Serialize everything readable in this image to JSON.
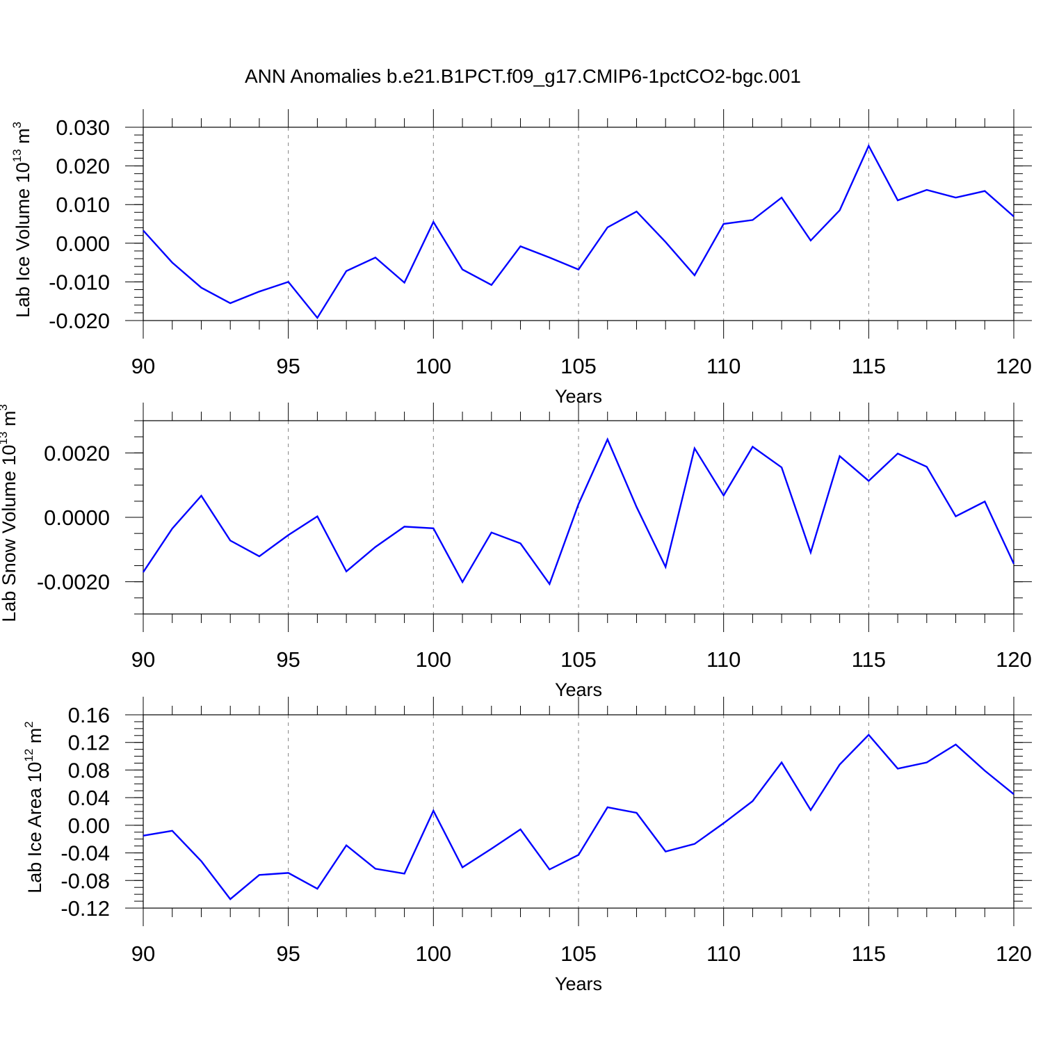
{
  "title": "ANN Anomalies b.e21.B1PCT.f09_g17.CMIP6-1pctCO2-bgc.001",
  "line_color": "#0000ff",
  "chart_data": [
    {
      "type": "line",
      "xlabel": "Years",
      "ylabel": {
        "text": "Lab Ice Volume 10",
        "exp": "13",
        "unit": " m",
        "unit_exp": "3"
      },
      "xlim": [
        90,
        120
      ],
      "ylim": [
        -0.02,
        0.03
      ],
      "x_ticks": [
        90,
        95,
        100,
        105,
        110,
        115,
        120
      ],
      "y_ticks": [
        -0.02,
        -0.01,
        0.0,
        0.01,
        0.02,
        0.03
      ],
      "y_tick_labels": [
        "-0.020",
        "-0.010",
        "0.000",
        "0.010",
        "0.020",
        "0.030"
      ],
      "y_minor_step": 0.002,
      "grid": "vertical dashed at major x ticks",
      "x": [
        90,
        91,
        92,
        93,
        94,
        95,
        96,
        97,
        98,
        99,
        100,
        101,
        102,
        103,
        104,
        105,
        106,
        107,
        108,
        109,
        110,
        111,
        112,
        113,
        114,
        115,
        116,
        117,
        118,
        119,
        120
      ],
      "y": [
        0.0033,
        -0.005,
        -0.0115,
        -0.0155,
        -0.0125,
        -0.01,
        -0.0193,
        -0.0072,
        -0.0037,
        -0.0102,
        0.0055,
        -0.0068,
        -0.0108,
        -0.0008,
        -0.0037,
        -0.0068,
        0.0041,
        0.0082,
        0.0003,
        -0.0083,
        0.005,
        0.006,
        0.0118,
        0.0007,
        0.0085,
        0.0252,
        0.0111,
        0.0138,
        0.0118,
        0.0135,
        0.0069
      ]
    },
    {
      "type": "line",
      "xlabel": "Years",
      "ylabel": {
        "text": "Lab Snow Volume 10",
        "exp": "13",
        "unit": " m",
        "unit_exp": "3"
      },
      "xlim": [
        90,
        120
      ],
      "ylim": [
        -0.003,
        0.003
      ],
      "x_ticks": [
        90,
        95,
        100,
        105,
        110,
        115,
        120
      ],
      "y_ticks": [
        -0.002,
        0.0,
        0.002
      ],
      "y_tick_labels": [
        "-0.0020",
        "0.0000",
        "0.0020"
      ],
      "y_minor_step": 0.0005,
      "grid": "vertical dashed at major x ticks",
      "x": [
        90,
        91,
        92,
        93,
        94,
        95,
        96,
        97,
        98,
        99,
        100,
        101,
        102,
        103,
        104,
        105,
        106,
        107,
        108,
        109,
        110,
        111,
        112,
        113,
        114,
        115,
        116,
        117,
        118,
        119,
        120
      ],
      "y": [
        -0.0017,
        -0.00035,
        0.00067,
        -0.00072,
        -0.00121,
        -0.00055,
        3e-05,
        -0.00168,
        -0.00092,
        -0.00029,
        -0.00034,
        -0.00201,
        -0.00047,
        -0.00081,
        -0.00207,
        0.00041,
        0.00242,
        0.00032,
        -0.00154,
        0.00214,
        0.00068,
        0.00219,
        0.00155,
        -0.00109,
        0.0019,
        0.00113,
        0.00198,
        0.00157,
        3e-05,
        0.00049,
        -0.00144
      ]
    },
    {
      "type": "line",
      "xlabel": "Years",
      "ylabel": {
        "text": "Lab Ice Area 10",
        "exp": "12",
        "unit": " m",
        "unit_exp": "2"
      },
      "xlim": [
        90,
        120
      ],
      "ylim": [
        -0.12,
        0.16
      ],
      "x_ticks": [
        90,
        95,
        100,
        105,
        110,
        115,
        120
      ],
      "y_ticks": [
        -0.12,
        -0.08,
        -0.04,
        0.0,
        0.04,
        0.08,
        0.12,
        0.16
      ],
      "y_tick_labels": [
        "-0.12",
        "-0.08",
        "-0.04",
        "0.00",
        "0.04",
        "0.08",
        "0.12",
        "0.16"
      ],
      "y_minor_step": 0.01,
      "grid": "vertical dashed at major x ticks",
      "x": [
        90,
        91,
        92,
        93,
        94,
        95,
        96,
        97,
        98,
        99,
        100,
        101,
        102,
        103,
        104,
        105,
        106,
        107,
        108,
        109,
        110,
        111,
        112,
        113,
        114,
        115,
        116,
        117,
        118,
        119,
        120
      ],
      "y": [
        -0.015,
        -0.008,
        -0.052,
        -0.107,
        -0.072,
        -0.069,
        -0.092,
        -0.029,
        -0.063,
        -0.07,
        0.021,
        -0.061,
        -0.034,
        -0.006,
        -0.064,
        -0.043,
        0.026,
        0.018,
        -0.038,
        -0.027,
        0.003,
        0.035,
        0.091,
        0.022,
        0.088,
        0.131,
        0.082,
        0.091,
        0.117,
        0.079,
        0.045
      ]
    }
  ]
}
